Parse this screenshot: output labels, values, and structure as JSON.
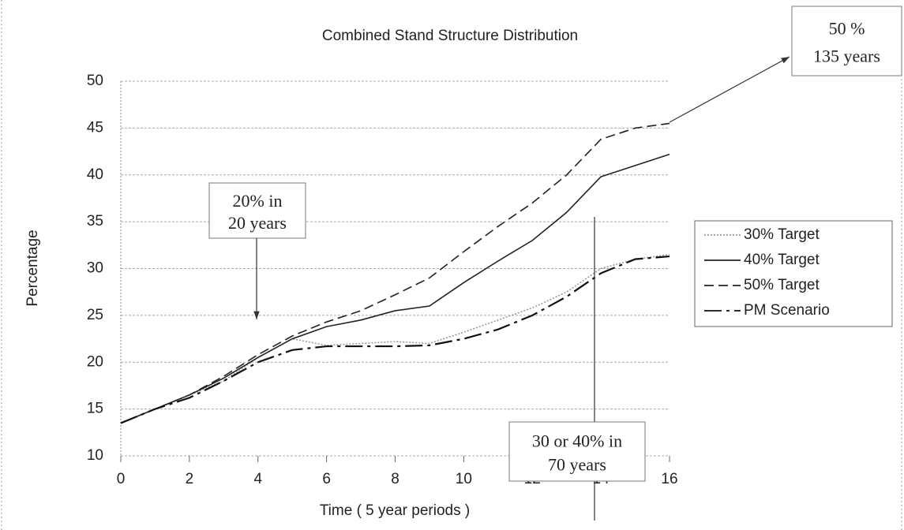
{
  "chart_data": {
    "type": "line",
    "title": "Combined Stand Structure Distribution",
    "x_label": "Time ( 5 year periods )",
    "y_label": "Percentage",
    "x": [
      0,
      1,
      2,
      3,
      4,
      5,
      6,
      7,
      8,
      9,
      10,
      11,
      12,
      13,
      14,
      15,
      16
    ],
    "series": [
      {
        "name": "30% Target",
        "color": "#9a9a9a",
        "dash": "dotted",
        "values": [
          13.5,
          15,
          16.5,
          18,
          20.5,
          22.5,
          21.8,
          22,
          22.2,
          22,
          23.2,
          24.5,
          25.8,
          27.5,
          30,
          31,
          31.5
        ]
      },
      {
        "name": "40% Target",
        "color": "#222222",
        "dash": "solid",
        "values": [
          13.5,
          15,
          16.5,
          18.3,
          20.5,
          22.5,
          23.8,
          24.5,
          25.5,
          26,
          28.5,
          30.8,
          33,
          36,
          39.8,
          41,
          42.2
        ]
      },
      {
        "name": "50% Target",
        "color": "#222222",
        "dash": "dashed",
        "values": [
          13.5,
          15,
          16.5,
          18.5,
          20.8,
          22.8,
          24.3,
          25.5,
          27.2,
          29,
          31.8,
          34.5,
          37,
          40,
          43.8,
          45,
          45.5
        ]
      },
      {
        "name": "PM Scenario",
        "color": "#111111",
        "dash": "longdash",
        "values": [
          13.5,
          15,
          16.2,
          18,
          20,
          21.3,
          21.7,
          21.7,
          21.7,
          21.8,
          22.5,
          23.5,
          25,
          27,
          29.5,
          31,
          31.3
        ]
      }
    ],
    "xlim": [
      0,
      16
    ],
    "xticks": [
      0,
      2,
      4,
      6,
      8,
      10,
      12,
      14,
      16
    ],
    "ylim": [
      10,
      50
    ],
    "yticks": [
      10,
      15,
      20,
      25,
      30,
      35,
      40,
      45,
      50
    ],
    "grid": true,
    "legend": "right",
    "annotations": [
      [
        "20% in",
        "20 years"
      ],
      [
        "30 or 40% in",
        "70 years"
      ],
      [
        "50 %",
        "135 years"
      ]
    ]
  }
}
